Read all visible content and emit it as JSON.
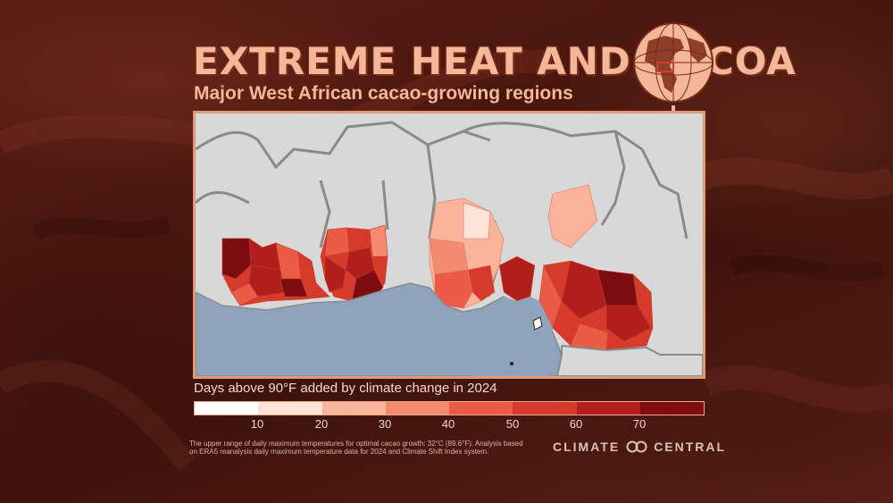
{
  "header": {
    "title": "EXTREME HEAT AND COCOA",
    "subtitle": "Major West African cacao-growing regions"
  },
  "legend": {
    "title": "Days above 90°F added by climate change in 2024",
    "ticks": [
      "10",
      "20",
      "30",
      "40",
      "50",
      "60",
      "70"
    ],
    "colors": [
      "#ffffff",
      "#fde3d6",
      "#f9b49b",
      "#f48a6e",
      "#ea5c45",
      "#d63a2b",
      "#b11f1c",
      "#7c0c10"
    ]
  },
  "footnote": "The upper range of daily maximum temperatures for optimal cacao growth: 32°C (89.6°F). Analysis based on ERA5 reanalysis daily maximum temperature data for 2024 and Climate Shift Index system.",
  "brand": {
    "left": "CLIMATE",
    "right": "CENTRAL"
  },
  "colors": {
    "ocean": "#8fa3bd",
    "land": "#d8d8d8",
    "border": "#8a8a8a",
    "frame": "#e09a76",
    "title": "#f4b79a"
  },
  "icons": [
    "globe-icon",
    "climate-central-logo-icon"
  ]
}
